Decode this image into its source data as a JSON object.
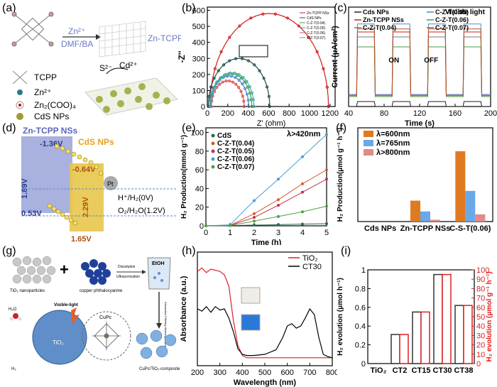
{
  "panel_labels": {
    "a": "(a)",
    "b": "(b)",
    "c": "(c)",
    "d": "(d)",
    "e": "(e)",
    "f": "(f)",
    "g": "(g)",
    "h": "(h)",
    "i": "(i)"
  },
  "panel_a": {
    "reaction_top": "Zn²⁺",
    "reaction_bottom": "DMF/BA",
    "product": "Zn-TCPP",
    "s2": "S²⁻",
    "cd2": "Cd²⁺",
    "legend": [
      "TCPP",
      "Zn²⁺",
      "Zn₂(COO)₄",
      "CdS NPs"
    ]
  },
  "panel_d": {
    "title_left": "Zn-TCPP NSs",
    "title_right": "CdS NPs",
    "v_136": "-1.36V",
    "v_189": "1.89V",
    "v_053": "0.53V",
    "v_064": "-0.64V",
    "v_229": "2.29V",
    "v_165": "1.65V",
    "pt": "Pt",
    "h2": "H⁺/H₂(0V)",
    "o2": "O₂/H₂O(1.2V)"
  },
  "panel_g": {
    "tio2": "TiO₂ nanoparticles",
    "cupc": "copper phthalocyanine",
    "dissolution": "Dissolution",
    "ultrasonication": "Ultrasonication",
    "etoh": "EtOH",
    "visible_light": "Visible-light",
    "h2o": "H₂O",
    "h2": "H₂",
    "tio2_core": "TiO₂",
    "cupc_label": "CuPc",
    "composite": "CuPc/TiO₂-composite",
    "side_steps": "Adsorption Filtering Washing Drying"
  },
  "chart_data": [
    {
      "id": "b",
      "type": "scatter",
      "xlabel": "Z' (ohm)",
      "ylabel": "-Z''",
      "xticks": [
        0,
        200,
        400,
        600,
        800,
        1000,
        1200
      ],
      "yticks": [
        0,
        100,
        200,
        300,
        400,
        500,
        600
      ],
      "xlim": [
        0,
        1250
      ],
      "ylim": [
        0,
        620
      ],
      "series": [
        {
          "name": "Zn-TCPP NSs",
          "color": "#d01c1c",
          "center": [
            605,
            0
          ],
          "radius": 580
        },
        {
          "name": "CdS NPs",
          "color": "#1f4e4e",
          "center": [
            310,
            0
          ],
          "radius": 300
        },
        {
          "name": "C-Z-T(0.04)",
          "color": "#4a9a4a",
          "center": [
            230,
            0
          ],
          "radius": 205
        },
        {
          "name": "C-Z-T(0.05)",
          "color": "#4a8ad0",
          "center": [
            215,
            0
          ],
          "radius": 190
        },
        {
          "name": "C-Z-T(0.06)",
          "color": "#e05050",
          "center": [
            200,
            0
          ],
          "radius": 160
        },
        {
          "name": "C-Z-T(0.07)",
          "color": "#3cb0a0",
          "center": [
            245,
            0
          ],
          "radius": 210
        }
      ],
      "legend": [
        "Zn-TCPP NSs",
        "CdS NPs",
        "C-Z-T(0.04)",
        "C-Z-T(0.05)",
        "C-Z-T(0.06)",
        "C-Z-T(0.07)"
      ]
    },
    {
      "id": "c",
      "type": "line",
      "xlabel": "Time (s)",
      "ylabel": "Current (μA/cm²)",
      "xticks": [
        40,
        80,
        120,
        160,
        200
      ],
      "xlim": [
        40,
        200
      ],
      "annotation": "Visible light",
      "on_label": "ON",
      "off_label": "OFF",
      "on_intervals": [
        [
          50,
          70
        ],
        [
          90,
          110
        ],
        [
          130,
          150
        ],
        [
          170,
          190
        ]
      ],
      "series": [
        {
          "name": "Cds NPs",
          "color": "#222222",
          "on": 0.05,
          "off": 0.0
        },
        {
          "name": "Zn-TCPP NSs",
          "color": "#d01c1c",
          "on": 0.75,
          "off": 0.12
        },
        {
          "name": "C-Z-T(0.04)",
          "color": "#777777",
          "on": 0.7,
          "off": 0.1
        },
        {
          "name": "C-Z-T(0.05)",
          "color": "#4a8ad0",
          "on": 0.83,
          "off": 0.12
        },
        {
          "name": "C-Z-T(0.06)",
          "color": "#4a9a4a",
          "on": 0.6,
          "off": 0.1
        },
        {
          "name": "C-Z-T(0.07)",
          "color": "#c05020",
          "on": 0.78,
          "off": 0.11
        }
      ]
    },
    {
      "id": "e",
      "type": "line",
      "xlabel": "Time (h)",
      "ylabel": "H₂ Production(mmol g⁻¹)",
      "annotation": "λ>420nm",
      "x": [
        0,
        1,
        2,
        3,
        4,
        5
      ],
      "xticks": [
        0,
        1,
        2,
        3,
        4,
        5
      ],
      "yticks": [
        0,
        20,
        40,
        60,
        80,
        100
      ],
      "ylim": [
        0,
        105
      ],
      "series": [
        {
          "name": "CdS",
          "color": "#2a6a4a",
          "values": [
            0,
            0.3,
            0.8,
            1.2,
            1.8,
            2.3
          ]
        },
        {
          "name": "C-Z-T(0.04)",
          "color": "#d06030",
          "values": [
            0,
            0.5,
            13,
            28,
            45,
            60
          ]
        },
        {
          "name": "C-Z-T(0.05)",
          "color": "#c03050",
          "values": [
            0,
            0.4,
            9,
            22,
            36,
            50
          ]
        },
        {
          "name": "C-Z-T(0.06)",
          "color": "#4aa0d0",
          "values": [
            0,
            1,
            27,
            50,
            74,
            98
          ]
        },
        {
          "name": "C-Z-T(0.07)",
          "color": "#50a040",
          "values": [
            0,
            0.3,
            5,
            10,
            15,
            21
          ]
        }
      ]
    },
    {
      "id": "f",
      "type": "bar",
      "ylabel": "H₂ Production(μmol g⁻¹ h⁻¹)",
      "categories": [
        "Cds NPs",
        "Zn-TCPP NSs",
        "C-S-T(0.06)"
      ],
      "ylim": [
        0,
        260
      ],
      "series": [
        {
          "name": "λ=600nm",
          "color": "#e07a20",
          "values": [
            0,
            58,
            195
          ]
        },
        {
          "name": "λ=765nm",
          "color": "#6aa8e8",
          "values": [
            0,
            28,
            85
          ]
        },
        {
          "name": "λ>800nm",
          "color": "#e08a8a",
          "values": [
            0,
            5,
            20
          ]
        }
      ]
    },
    {
      "id": "h",
      "type": "line",
      "xlabel": "Wavelength (nm)",
      "ylabel": "Absorbance (a.u.)",
      "xticks": [
        200,
        300,
        400,
        500,
        600,
        700,
        800
      ],
      "xlim": [
        200,
        800
      ],
      "series": [
        {
          "name": "TiO₂",
          "color": "#e02020",
          "x": [
            200,
            220,
            240,
            260,
            280,
            300,
            320,
            340,
            360,
            380,
            400,
            420,
            440,
            500,
            600,
            700,
            800
          ],
          "values": [
            0.83,
            0.86,
            0.82,
            0.85,
            0.84,
            0.83,
            0.8,
            0.7,
            0.4,
            0.18,
            0.09,
            0.07,
            0.07,
            0.07,
            0.07,
            0.07,
            0.07
          ]
        },
        {
          "name": "CT30",
          "color": "#000000",
          "x": [
            200,
            220,
            240,
            260,
            280,
            300,
            320,
            340,
            360,
            380,
            400,
            420,
            450,
            500,
            550,
            580,
            600,
            620,
            640,
            660,
            680,
            700,
            720,
            740,
            760,
            780,
            800
          ],
          "values": [
            0.5,
            0.48,
            0.52,
            0.47,
            0.52,
            0.49,
            0.5,
            0.42,
            0.3,
            0.15,
            0.1,
            0.09,
            0.09,
            0.1,
            0.14,
            0.25,
            0.35,
            0.37,
            0.33,
            0.35,
            0.42,
            0.5,
            0.45,
            0.25,
            0.1,
            0.08,
            0.07
          ]
        }
      ]
    },
    {
      "id": "i",
      "type": "bar",
      "ylabel": "H₂ evolution (μmol h⁻¹)",
      "ylabel_right": "H₂ evolution (μmol g⁻¹ h⁻¹)",
      "categories": [
        "TiO₂",
        "CT2",
        "CT15",
        "CT30",
        "CT38"
      ],
      "yticks": [
        0.0,
        0.2,
        0.4,
        0.6,
        0.8,
        1.0
      ],
      "yticks_right": [
        0,
        10,
        20,
        30,
        40,
        50,
        60,
        70,
        80,
        90,
        100
      ],
      "ylim": [
        0,
        1.0
      ],
      "series": [
        {
          "name": "μmol h⁻¹",
          "color": "#333333",
          "values": [
            0,
            0.31,
            0.55,
            0.95,
            0.62
          ]
        },
        {
          "name": "μmol g⁻¹ h⁻¹",
          "color": "#e02020",
          "values": [
            0,
            31,
            55,
            95,
            62
          ]
        }
      ]
    }
  ]
}
